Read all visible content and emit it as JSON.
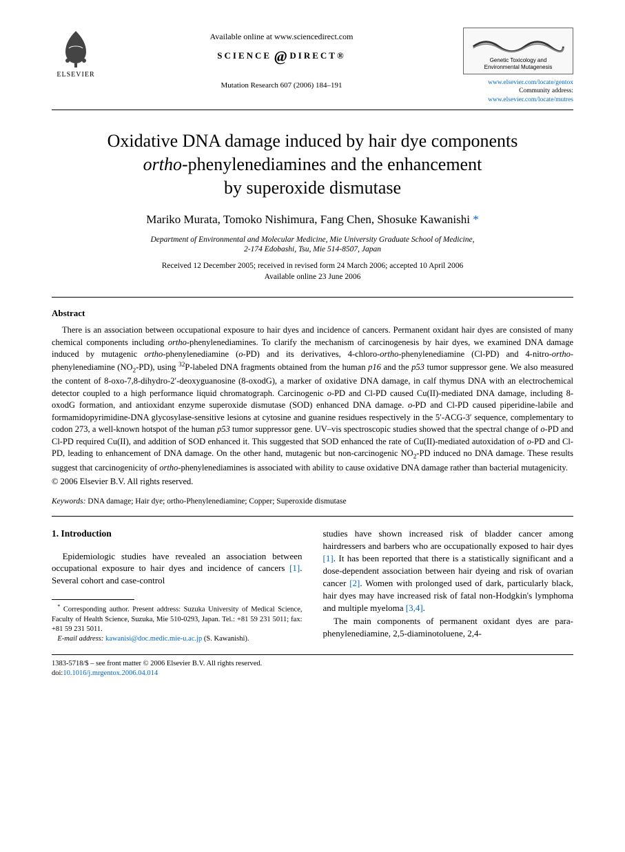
{
  "header": {
    "available_online": "Available online at www.sciencedirect.com",
    "science": "SCIENCE",
    "direct": "DIRECT®",
    "journal_citation": "Mutation Research 607 (2006) 184–191",
    "elsevier_text": "ELSEVIER",
    "mr_sub1": "Genetic Toxicology and",
    "mr_sub2": "Environmental Mutagenesis",
    "link1": "www.elsevier.com/locate/gentox",
    "link2_label": "Community address: ",
    "link2": "www.elsevier.com/locate/mutres"
  },
  "title": {
    "line1a": "Oxidative DNA damage induced by hair dye components",
    "line2_ital": "ortho",
    "line2_rest": "-phenylenediamines and the enhancement",
    "line3": "by superoxide dismutase"
  },
  "authors": "Mariko Murata, Tomoko Nishimura, Fang Chen, Shosuke Kawanishi",
  "author_star": " *",
  "affiliation": {
    "line1": "Department of Environmental and Molecular Medicine, Mie University Graduate School of Medicine,",
    "line2": "2-174 Edobashi, Tsu, Mie 514-8507, Japan"
  },
  "dates": {
    "received": "Received 12 December 2005; received in revised form 24 March 2006; accepted 10 April 2006",
    "online": "Available online 23 June 2006"
  },
  "abstract": {
    "heading": "Abstract",
    "body_html": "There is an association between occupational exposure to hair dyes and incidence of cancers. Permanent oxidant hair dyes are consisted of many chemical components including <span class='ital'>ortho</span>-phenylenediamines. To clarify the mechanism of carcinogenesis by hair dyes, we examined DNA damage induced by mutagenic <span class='ital'>ortho</span>-phenylenediamine (<span class='ital'>o</span>-PD) and its derivatives, 4-chloro-<span class='ital'>ortho</span>-phenylenediamine (Cl-PD) and 4-nitro-<span class='ital'>ortho</span>-phenylenediamine (NO<sub>2</sub>-PD), using <sup>32</sup>P-labeled DNA fragments obtained from the human <span class='ital'>p16</span> and the <span class='ital'>p53</span> tumor suppressor gene. We also measured the content of 8-oxo-7,8-dihydro-2′-deoxyguanosine (8-oxodG), a marker of oxidative DNA damage, in calf thymus DNA with an electrochemical detector coupled to a high performance liquid chromatograph. Carcinogenic <span class='ital'>o</span>-PD and Cl-PD caused Cu(II)-mediated DNA damage, including 8-oxodG formation, and antioxidant enzyme superoxide dismutase (SOD) enhanced DNA damage. <span class='ital'>o</span>-PD and Cl-PD caused piperidine-labile and formamidopyrimidine-DNA glycosylase-sensitive lesions at cytosine and guanine residues respectively in the 5′-ACG-3′ sequence, complementary to codon 273, a well-known hotspot of the human <span class='ital'>p53</span> tumor suppressor gene. UV–vis spectroscopic studies showed that the spectral change of <span class='ital'>o</span>-PD and Cl-PD required Cu(II), and addition of SOD enhanced it. This suggested that SOD enhanced the rate of Cu(II)-mediated autoxidation of <span class='ital'>o</span>-PD and Cl-PD, leading to enhancement of DNA damage. On the other hand, mutagenic but non-carcinogenic NO<sub>2</sub>-PD induced no DNA damage. These results suggest that carcinogenicity of <span class='ital'>ortho</span>-phenylenediamines is associated with ability to cause oxidative DNA damage rather than bacterial mutagenicity.",
    "copyright": "© 2006 Elsevier B.V. All rights reserved."
  },
  "keywords": {
    "label": "Keywords:",
    "text_html": "  DNA damage; Hair dye; <span class='ital'>ortho</span>-Phenylenediamine; Copper; Superoxide dismutase"
  },
  "intro": {
    "heading": "1.  Introduction",
    "left_para_html": "Epidemiologic studies have revealed an association between occupational exposure to hair dyes and incidence of cancers <a class='link' href='#'>[1]</a>. Several cohort and case-control",
    "right_para1_html": "studies have shown increased risk of bladder cancer among hairdressers and barbers who are occupationally exposed to hair dyes <a class='link' href='#'>[1]</a>. It has been reported that there is a statistically significant and a dose-dependent association between hair dyeing and risk of ovarian cancer <a class='link' href='#'>[2]</a>. Women with prolonged used of dark, particularly black, hair dyes may have increased risk of fatal non-Hodgkin's lymphoma and multiple myeloma <a class='link' href='#'>[3,4]</a>.",
    "right_para2_html": "The main components of permanent oxidant dyes are <span class='ital'>para</span>-phenylenediamine, 2,5-diaminotoluene, 2,4-"
  },
  "footnote": {
    "corr_html": "<sup>*</sup> Corresponding author. Present address: Suzuka University of Medical Science, Faculty of Health Science, Suzuka, Mie 510-0293, Japan. Tel.: +81 59 231 5011; fax: +81 59 231 5011.",
    "email_label": "E-mail address:",
    "email": "kawanisi@doc.medic.mie-u.ac.jp",
    "email_who": " (S. Kawanishi)."
  },
  "front_matter": {
    "line1": "1383-5718/$ – see front matter © 2006 Elsevier B.V. All rights reserved.",
    "doi_label": "doi:",
    "doi": "10.1016/j.mrgentox.2006.04.014"
  },
  "colors": {
    "link": "#0066cc",
    "text": "#000000",
    "bg": "#ffffff",
    "logo_border": "#666666"
  }
}
